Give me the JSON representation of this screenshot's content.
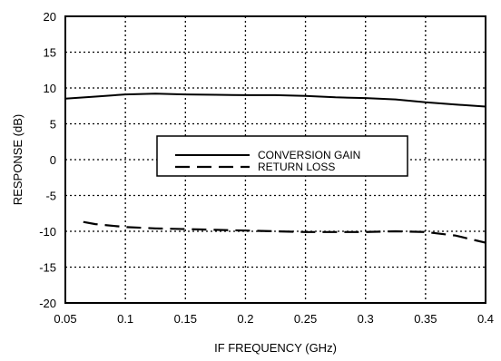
{
  "chart_data": {
    "type": "line",
    "title": "",
    "xlabel": "IF FREQUENCY (GHz)",
    "ylabel": "RESPONSE (dB)",
    "xlim": [
      0.05,
      0.4
    ],
    "ylim": [
      -20,
      20
    ],
    "xticks": [
      "0.05",
      "0.1",
      "0.15",
      "0.2",
      "0.25",
      "0.3",
      "0.35",
      "0.4"
    ],
    "yticks": [
      "20",
      "15",
      "10",
      "5",
      "0",
      "-5",
      "-10",
      "-15",
      "-20"
    ],
    "grid": true,
    "legend_position": "center",
    "series": [
      {
        "name": "CONVERSION GAIN",
        "style": "solid",
        "x": [
          0.05,
          0.075,
          0.1,
          0.125,
          0.15,
          0.175,
          0.2,
          0.225,
          0.25,
          0.275,
          0.3,
          0.325,
          0.35,
          0.375,
          0.4
        ],
        "y": [
          8.5,
          8.8,
          9.1,
          9.2,
          9.1,
          9.05,
          9.0,
          9.0,
          8.9,
          8.7,
          8.6,
          8.4,
          8.0,
          7.7,
          7.4
        ]
      },
      {
        "name": "RETURN LOSS",
        "style": "dashed",
        "x": [
          0.065,
          0.075,
          0.1,
          0.125,
          0.15,
          0.175,
          0.2,
          0.225,
          0.25,
          0.275,
          0.3,
          0.325,
          0.35,
          0.375,
          0.4
        ],
        "y": [
          -8.7,
          -9.0,
          -9.4,
          -9.6,
          -9.7,
          -9.8,
          -9.9,
          -10.0,
          -10.1,
          -10.1,
          -10.1,
          -10.0,
          -10.1,
          -10.6,
          -11.6
        ]
      }
    ]
  }
}
